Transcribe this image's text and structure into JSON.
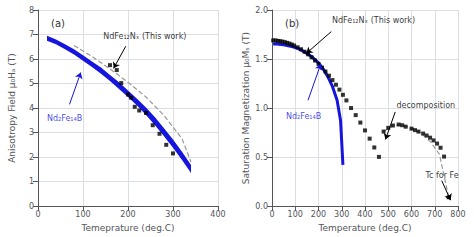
{
  "chart_data": [
    {
      "type": "line",
      "title": "(a)",
      "xlabel": "Temeprature (deg.C)",
      "ylabel": "Anisotropy Field μ₀Hₐ (T)",
      "xlim": [
        0,
        400
      ],
      "ylim": [
        0,
        8
      ],
      "xticks": [
        0,
        100,
        200,
        300,
        400
      ],
      "yticks": [
        0,
        1,
        2,
        3,
        4,
        5,
        6,
        7,
        8
      ],
      "grid": true,
      "series": [
        {
          "type": "band",
          "color": "#1515dd",
          "x": [
            20,
            40,
            60,
            80,
            100,
            120,
            140,
            160,
            180,
            200,
            220,
            240,
            260,
            280,
            300,
            320,
            340
          ],
          "upper": [
            6.95,
            6.8,
            6.6,
            6.4,
            6.15,
            5.9,
            5.65,
            5.35,
            5.05,
            4.72,
            4.38,
            4.02,
            3.62,
            3.18,
            2.72,
            2.22,
            1.68
          ],
          "lower": [
            6.75,
            6.6,
            6.4,
            6.18,
            5.93,
            5.67,
            5.4,
            5.1,
            4.78,
            4.45,
            4.1,
            3.72,
            3.3,
            2.85,
            2.38,
            1.88,
            1.35
          ]
        },
        {
          "type": "line",
          "color": "#999999",
          "line_style": "dashed",
          "x": [
            80,
            120,
            160,
            200,
            240,
            280,
            320,
            340
          ],
          "values": [
            6.55,
            6.1,
            5.6,
            5.05,
            4.45,
            3.7,
            2.75,
            1.8
          ]
        },
        {
          "type": "scatter",
          "color": "black",
          "marker": "square",
          "x": [
            160,
            175,
            185,
            200,
            207,
            215,
            225,
            240,
            255,
            270,
            285,
            300
          ],
          "values": [
            5.75,
            5.55,
            5.02,
            4.55,
            4.42,
            4.05,
            3.9,
            3.8,
            3.3,
            2.95,
            2.5,
            2.15
          ]
        }
      ],
      "annotations": [
        {
          "text": "Nd₂Fe₁₄B",
          "x": 20,
          "y": 3.75,
          "color": "#1515dd",
          "arrow_from": [
            70,
            4.15
          ],
          "arrow_to": [
            95,
            5.45
          ]
        },
        {
          "text": "NdFe₁₂Nₓ (This work)",
          "x": 145,
          "y": 6.75,
          "color": "black",
          "arrow_from": [
            195,
            6.52
          ],
          "arrow_to": [
            168,
            5.62
          ]
        }
      ]
    },
    {
      "type": "line",
      "title": "(b)",
      "xlabel": "Temperature (deg.C)",
      "ylabel": "Saturation Magnetization μ₀Mₛ (T)",
      "xlim": [
        0,
        800
      ],
      "ylim": [
        0.0,
        2.0
      ],
      "xticks": [
        0,
        100,
        200,
        300,
        400,
        500,
        600,
        700,
        800
      ],
      "yticks": [
        {
          "value": 0,
          "label": "0.0"
        },
        0.5,
        {
          "value": 1,
          "label": "1.0"
        },
        1.5,
        {
          "value": 2,
          "label": "2.0"
        }
      ],
      "grid": true,
      "series": [
        {
          "type": "line",
          "color": "#1515dd",
          "x": [
            5,
            15,
            30,
            50,
            70,
            90,
            110,
            130,
            150,
            175,
            200,
            220,
            240,
            260,
            280,
            295,
            305
          ],
          "values": [
            1.65,
            1.655,
            1.65,
            1.645,
            1.635,
            1.625,
            1.608,
            1.585,
            1.558,
            1.515,
            1.46,
            1.4,
            1.32,
            1.22,
            1.08,
            0.87,
            0.42
          ]
        },
        {
          "type": "scatter",
          "color": "black",
          "marker": "square",
          "x": [
            5,
            15,
            25,
            35,
            45,
            55,
            65,
            75,
            85,
            95,
            110,
            125,
            140,
            155,
            170,
            185,
            200,
            215,
            230,
            245,
            260,
            275,
            290,
            305,
            320,
            340,
            360,
            380,
            400,
            420,
            440,
            460,
            480,
            500,
            520,
            545,
            560,
            575,
            600,
            615,
            630,
            650,
            665,
            680,
            695,
            710,
            725,
            740,
            760
          ],
          "values": [
            1.69,
            1.69,
            1.685,
            1.682,
            1.678,
            1.672,
            1.665,
            1.658,
            1.648,
            1.638,
            1.62,
            1.6,
            1.575,
            1.548,
            1.518,
            1.485,
            1.45,
            1.412,
            1.372,
            1.33,
            1.285,
            1.238,
            1.188,
            1.135,
            1.078,
            1.0,
            0.928,
            0.852,
            0.772,
            0.688,
            0.598,
            0.502,
            0.76,
            0.798,
            0.822,
            0.832,
            0.825,
            0.81,
            0.79,
            0.775,
            0.76,
            0.74,
            0.72,
            0.698,
            0.67,
            0.638,
            0.595,
            0.505,
            0.09
          ]
        },
        {
          "type": "line",
          "color": "#999999",
          "line_style": "dashed",
          "x": [
            480,
            520,
            560,
            600,
            640,
            680,
            720,
            760
          ],
          "values": [
            0.76,
            0.82,
            0.83,
            0.79,
            0.745,
            0.66,
            0.53,
            0.09
          ]
        }
      ],
      "annotations": [
        {
          "text": "Nd₂Fe₁₄B",
          "x": 60,
          "y": 0.95,
          "color": "#1515dd",
          "arrow_from": [
            155,
            1.08
          ],
          "arrow_to": [
            210,
            1.45
          ]
        },
        {
          "text": "NdFe₁₂Nₓ (This work)",
          "x": 258,
          "y": 1.85,
          "color": "black",
          "arrow_from": [
            255,
            1.78
          ],
          "arrow_to": [
            148,
            1.558
          ]
        },
        {
          "text": "decomposition",
          "x": 535,
          "y": 0.99,
          "color": "black",
          "arrow_from": [
            530,
            0.96
          ],
          "arrow_to": [
            488,
            0.68
          ]
        },
        {
          "text": "Tc for Fe",
          "x": 660,
          "y": 0.27,
          "color": "black",
          "arrow_from": [
            730,
            0.26
          ],
          "arrow_to": [
            768,
            0.06
          ]
        }
      ]
    }
  ]
}
